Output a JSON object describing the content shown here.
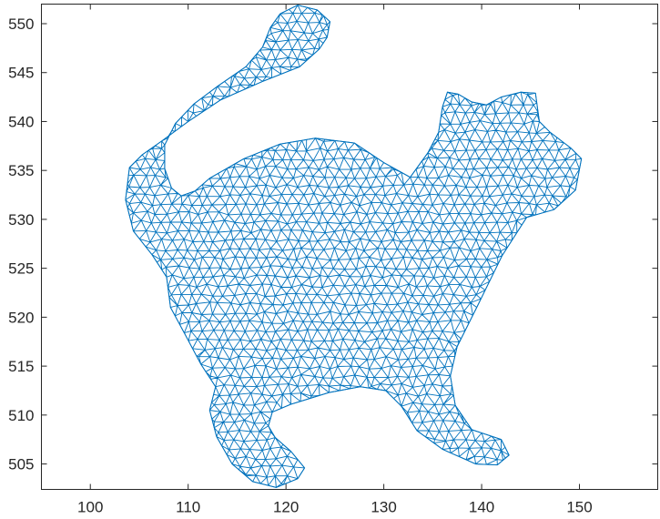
{
  "chart_data": {
    "type": "mesh",
    "title": "",
    "xlabel": "",
    "ylabel": "",
    "xlim": [
      95,
      158
    ],
    "ylim": [
      502.4,
      552
    ],
    "xticks": [
      100,
      110,
      120,
      130,
      140,
      150
    ],
    "yticks": [
      505,
      510,
      515,
      520,
      525,
      530,
      535,
      540,
      545,
      550
    ],
    "xtick_labels": [
      "100",
      "110",
      "120",
      "130",
      "140",
      "150"
    ],
    "ytick_labels": [
      "505",
      "510",
      "515",
      "520",
      "525",
      "530",
      "535",
      "540",
      "545",
      "550"
    ],
    "grid": false,
    "box": true,
    "line_color": "#0072BD",
    "axis_color": "#262626",
    "outline": [
      [
        104.0,
        535.3
      ],
      [
        103.6,
        532.0
      ],
      [
        104.4,
        528.8
      ],
      [
        106.3,
        526.4
      ],
      [
        107.8,
        524.1
      ],
      [
        108.2,
        521.0
      ],
      [
        109.6,
        518.4
      ],
      [
        111.3,
        515.2
      ],
      [
        112.8,
        512.9
      ],
      [
        112.2,
        510.5
      ],
      [
        112.9,
        507.8
      ],
      [
        114.5,
        505.0
      ],
      [
        116.6,
        503.2
      ],
      [
        119.0,
        502.6
      ],
      [
        121.2,
        503.5
      ],
      [
        121.9,
        504.6
      ],
      [
        120.5,
        506.3
      ],
      [
        118.9,
        507.7
      ],
      [
        118.2,
        508.9
      ],
      [
        118.6,
        510.3
      ],
      [
        120.5,
        511.1
      ],
      [
        124.4,
        512.3
      ],
      [
        127.6,
        512.9
      ],
      [
        130.2,
        512.5
      ],
      [
        131.8,
        510.9
      ],
      [
        133.4,
        508.4
      ],
      [
        136.0,
        506.5
      ],
      [
        139.4,
        505.0
      ],
      [
        141.6,
        504.9
      ],
      [
        142.8,
        505.9
      ],
      [
        142.0,
        507.5
      ],
      [
        139.0,
        508.5
      ],
      [
        137.3,
        511.0
      ],
      [
        136.8,
        514.0
      ],
      [
        137.5,
        517.0
      ],
      [
        139.5,
        521.0
      ],
      [
        142.1,
        526.3
      ],
      [
        144.6,
        530.2
      ],
      [
        147.4,
        531.0
      ],
      [
        149.6,
        533.0
      ],
      [
        150.2,
        536.2
      ],
      [
        149.1,
        537.3
      ],
      [
        147.0,
        538.9
      ],
      [
        145.9,
        540.0
      ],
      [
        145.5,
        542.9
      ],
      [
        144.0,
        543.0
      ],
      [
        142.0,
        542.5
      ],
      [
        140.5,
        541.7
      ],
      [
        139.0,
        542.0
      ],
      [
        137.6,
        542.8
      ],
      [
        136.5,
        543.0
      ],
      [
        136.0,
        541.5
      ],
      [
        135.6,
        538.9
      ],
      [
        134.5,
        536.8
      ],
      [
        132.7,
        534.3
      ],
      [
        130.0,
        535.8
      ],
      [
        127.0,
        537.8
      ],
      [
        123.0,
        538.3
      ],
      [
        119.4,
        537.7
      ],
      [
        115.7,
        536.2
      ],
      [
        112.2,
        534.2
      ],
      [
        110.7,
        532.9
      ],
      [
        109.3,
        532.4
      ],
      [
        108.3,
        533.2
      ],
      [
        107.6,
        535.2
      ],
      [
        107.6,
        537.6
      ],
      [
        108.7,
        539.8
      ],
      [
        110.6,
        541.8
      ],
      [
        113.0,
        543.6
      ],
      [
        115.9,
        545.6
      ],
      [
        117.6,
        547.6
      ],
      [
        118.4,
        549.6
      ],
      [
        119.4,
        551.0
      ],
      [
        121.2,
        551.9
      ],
      [
        123.2,
        551.4
      ],
      [
        124.5,
        550.2
      ],
      [
        124.2,
        548.6
      ],
      [
        123.4,
        547.4
      ],
      [
        121.4,
        545.6
      ],
      [
        117.6,
        544.1
      ],
      [
        113.3,
        542.2
      ],
      [
        110.0,
        540.0
      ],
      [
        107.3,
        538.0
      ],
      [
        105.3,
        536.6
      ]
    ]
  }
}
